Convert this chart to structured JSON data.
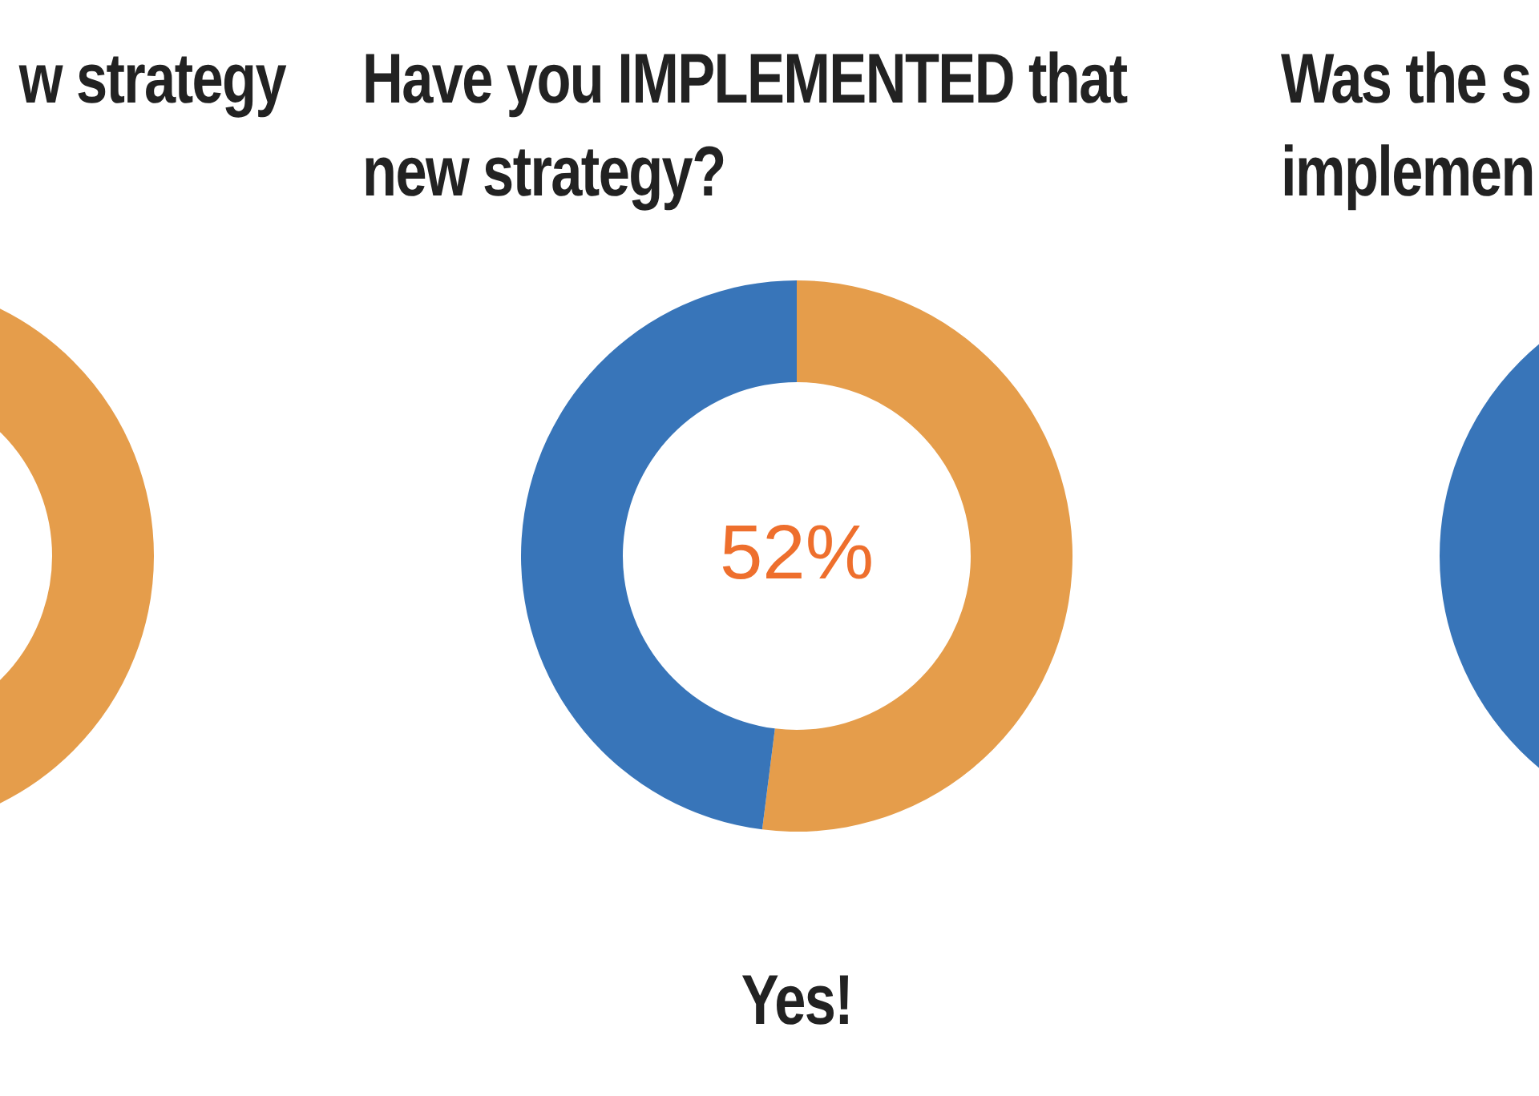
{
  "chart_data": [
    {
      "type": "other",
      "title": "w strategy"
    },
    {
      "type": "donut",
      "title": "Have you IMPLEMENTED that new strategy?",
      "categories": [
        null,
        null
      ],
      "values": [
        52,
        48
      ],
      "colors": [
        "#e59d4b",
        "#3875b9"
      ],
      "value_labels": [
        "52%",
        null
      ],
      "annotations": [
        "Yes!"
      ]
    },
    {
      "type": "other",
      "title": "Was the s implemen"
    }
  ]
}
